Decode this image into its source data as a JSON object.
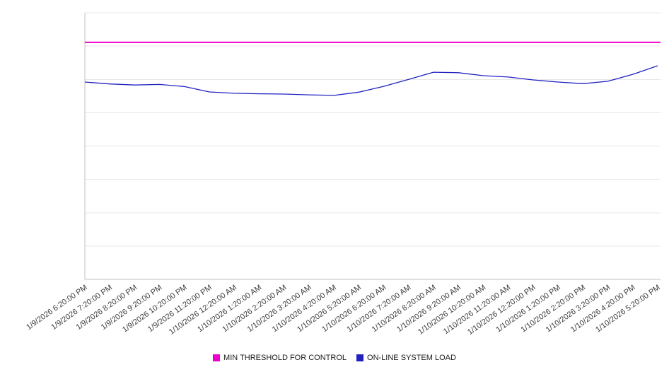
{
  "chart_data": {
    "type": "line",
    "title": "",
    "xlabel": "",
    "ylabel": "",
    "y_axis_labels_visible": false,
    "ylim": [
      0,
      100
    ],
    "grid": true,
    "grid_divisions": 8,
    "legend_position": "bottom-center",
    "colors": {
      "grid": "#e7e7e7",
      "axis": "#c2c2c2",
      "tick_label": "#3c3c3c",
      "background": "#ffffff"
    },
    "x_labels": [
      "1/9/2026 6:20:00 PM",
      "1/9/2026 7:20:00 PM",
      "1/9/2026 8:20:00 PM",
      "1/9/2026 9:20:00 PM",
      "1/9/2026 10:20:00 PM",
      "1/9/2026 11:20:00 PM",
      "1/10/2026 12:20:00 AM",
      "1/10/2026 1:20:00 AM",
      "1/10/2026 2:20:00 AM",
      "1/10/2026 3:20:00 AM",
      "1/10/2026 4:20:00 AM",
      "1/10/2026 5:20:00 AM",
      "1/10/2026 6:20:00 AM",
      "1/10/2026 7:20:00 AM",
      "1/10/2026 8:20:00 AM",
      "1/10/2026 9:20:00 AM",
      "1/10/2026 10:20:00 AM",
      "1/10/2026 11:20:00 AM",
      "1/10/2026 12:20:00 PM",
      "1/10/2026 1:20:00 PM",
      "1/10/2026 2:20:00 PM",
      "1/10/2026 3:20:00 PM",
      "1/10/2026 4:20:00 PM",
      "1/10/2026 5:20:00 PM"
    ],
    "series": [
      {
        "name": "MIN THRESHOLD FOR CONTROL",
        "type": "threshold",
        "color": "#ee00cc",
        "value": 88.9
      },
      {
        "name": "ON-LINE SYSTEM LOAD",
        "type": "line",
        "color": "#2121c0",
        "values": [
          74.0,
          73.3,
          72.9,
          73.1,
          72.3,
          70.3,
          69.8,
          69.6,
          69.5,
          69.2,
          69.0,
          70.2,
          72.4,
          75.0,
          77.7,
          77.5,
          76.4,
          75.9,
          74.8,
          74.0,
          73.4,
          74.3,
          76.9,
          80.1
        ]
      }
    ]
  }
}
